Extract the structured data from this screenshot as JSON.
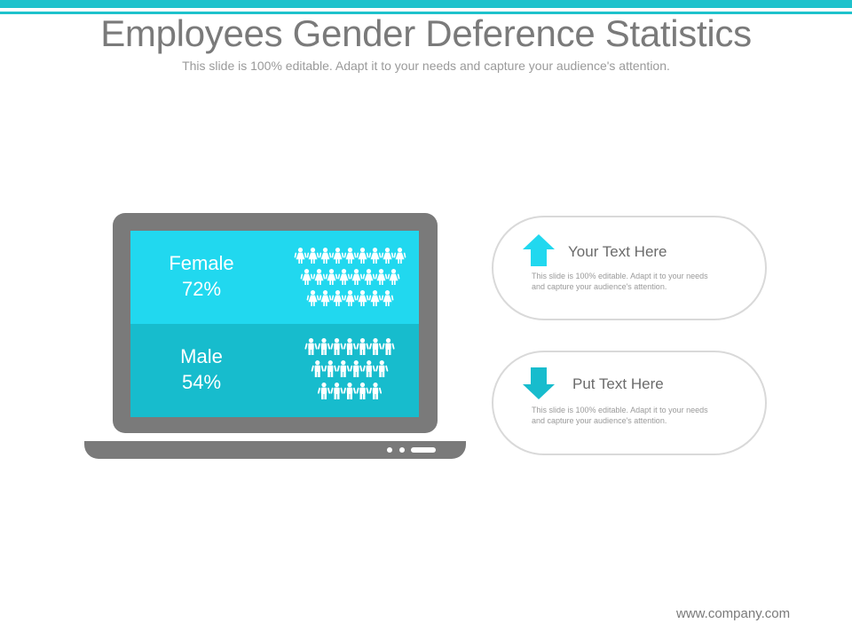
{
  "header": {
    "title": "Employees Gender Deference Statistics",
    "subtitle": "This slide is 100% editable. Adapt it to your needs and capture your audience's attention."
  },
  "stats": {
    "female": {
      "label": "Female",
      "percent": "72%",
      "color": "#21d8ef",
      "icon": "female-figure-icon",
      "rows": [
        9,
        8,
        7
      ]
    },
    "male": {
      "label": "Male",
      "percent": "54%",
      "color": "#17bccd",
      "icon": "male-figure-icon",
      "rows": [
        7,
        6,
        5
      ]
    }
  },
  "callouts": [
    {
      "heading": "Your Text Here",
      "body": "This slide is 100% editable. Adapt it to your needs and capture your audience's attention.",
      "icon": "arrow-up-icon",
      "color": "#21d8ef"
    },
    {
      "heading": "Put Text Here",
      "body": "This slide is 100% editable. Adapt it to your needs and capture your audience's attention.",
      "icon": "arrow-down-icon",
      "color": "#17bccd"
    }
  ],
  "footer": {
    "website": "www.company.com"
  },
  "colors": {
    "accent": "#1ec2cc",
    "laptop": "#7a7a7a",
    "text": "#7a7a7a"
  }
}
